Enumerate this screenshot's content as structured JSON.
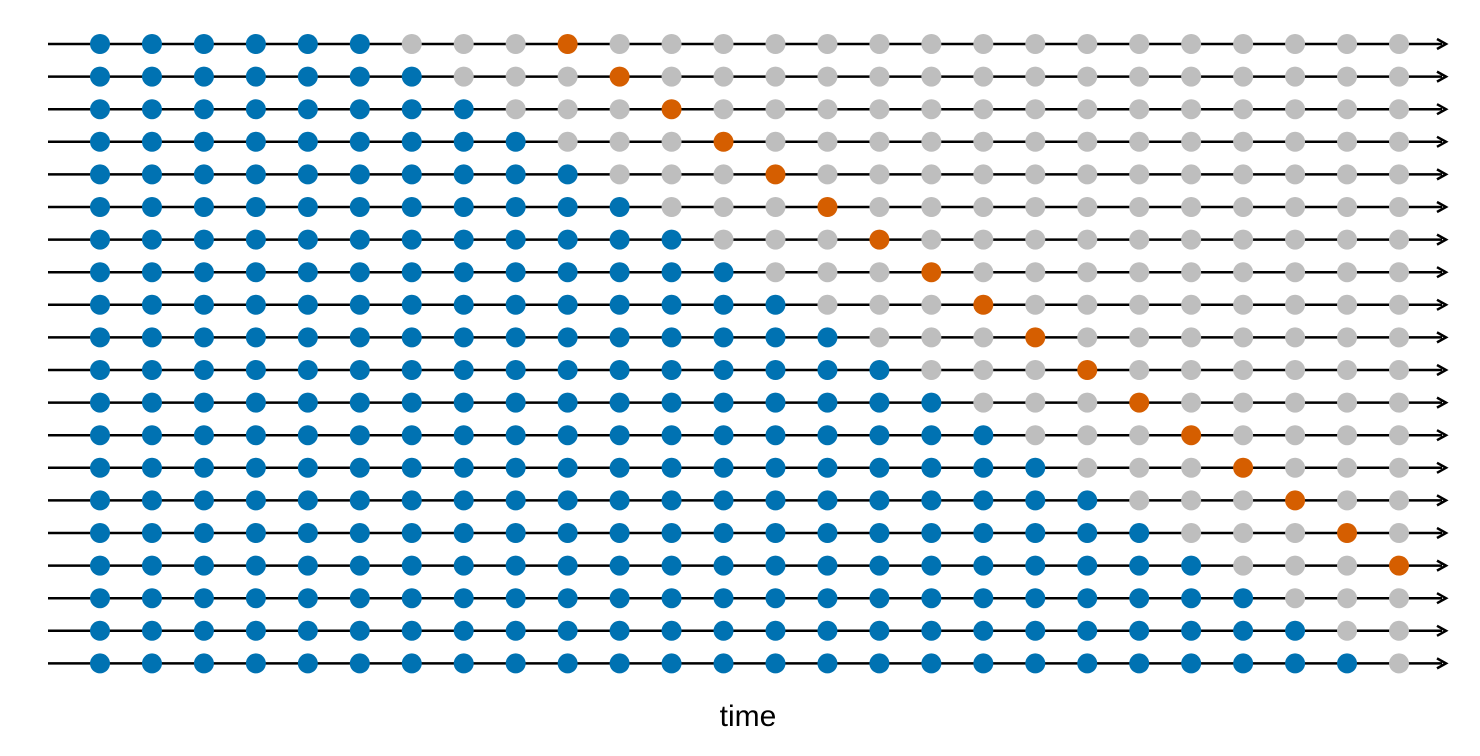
{
  "diagram": {
    "xlabel": "time",
    "points_per_row": 26,
    "rows": [
      {
        "train_count": 6,
        "forecast_index": 9
      },
      {
        "train_count": 7,
        "forecast_index": 10
      },
      {
        "train_count": 8,
        "forecast_index": 11
      },
      {
        "train_count": 9,
        "forecast_index": 12
      },
      {
        "train_count": 10,
        "forecast_index": 13
      },
      {
        "train_count": 11,
        "forecast_index": 14
      },
      {
        "train_count": 12,
        "forecast_index": 15
      },
      {
        "train_count": 13,
        "forecast_index": 16
      },
      {
        "train_count": 14,
        "forecast_index": 17
      },
      {
        "train_count": 15,
        "forecast_index": 18
      },
      {
        "train_count": 16,
        "forecast_index": 19
      },
      {
        "train_count": 17,
        "forecast_index": 20
      },
      {
        "train_count": 18,
        "forecast_index": 21
      },
      {
        "train_count": 19,
        "forecast_index": 22
      },
      {
        "train_count": 20,
        "forecast_index": 23
      },
      {
        "train_count": 21,
        "forecast_index": 24
      },
      {
        "train_count": 22,
        "forecast_index": 25
      },
      {
        "train_count": 23,
        "forecast_index": null
      },
      {
        "train_count": 24,
        "forecast_index": null
      },
      {
        "train_count": 25,
        "forecast_index": null
      }
    ],
    "colors": {
      "training": "#0072B2",
      "forecast": "#D55E00",
      "unused": "#BEBEBE",
      "line": "#000000"
    }
  }
}
